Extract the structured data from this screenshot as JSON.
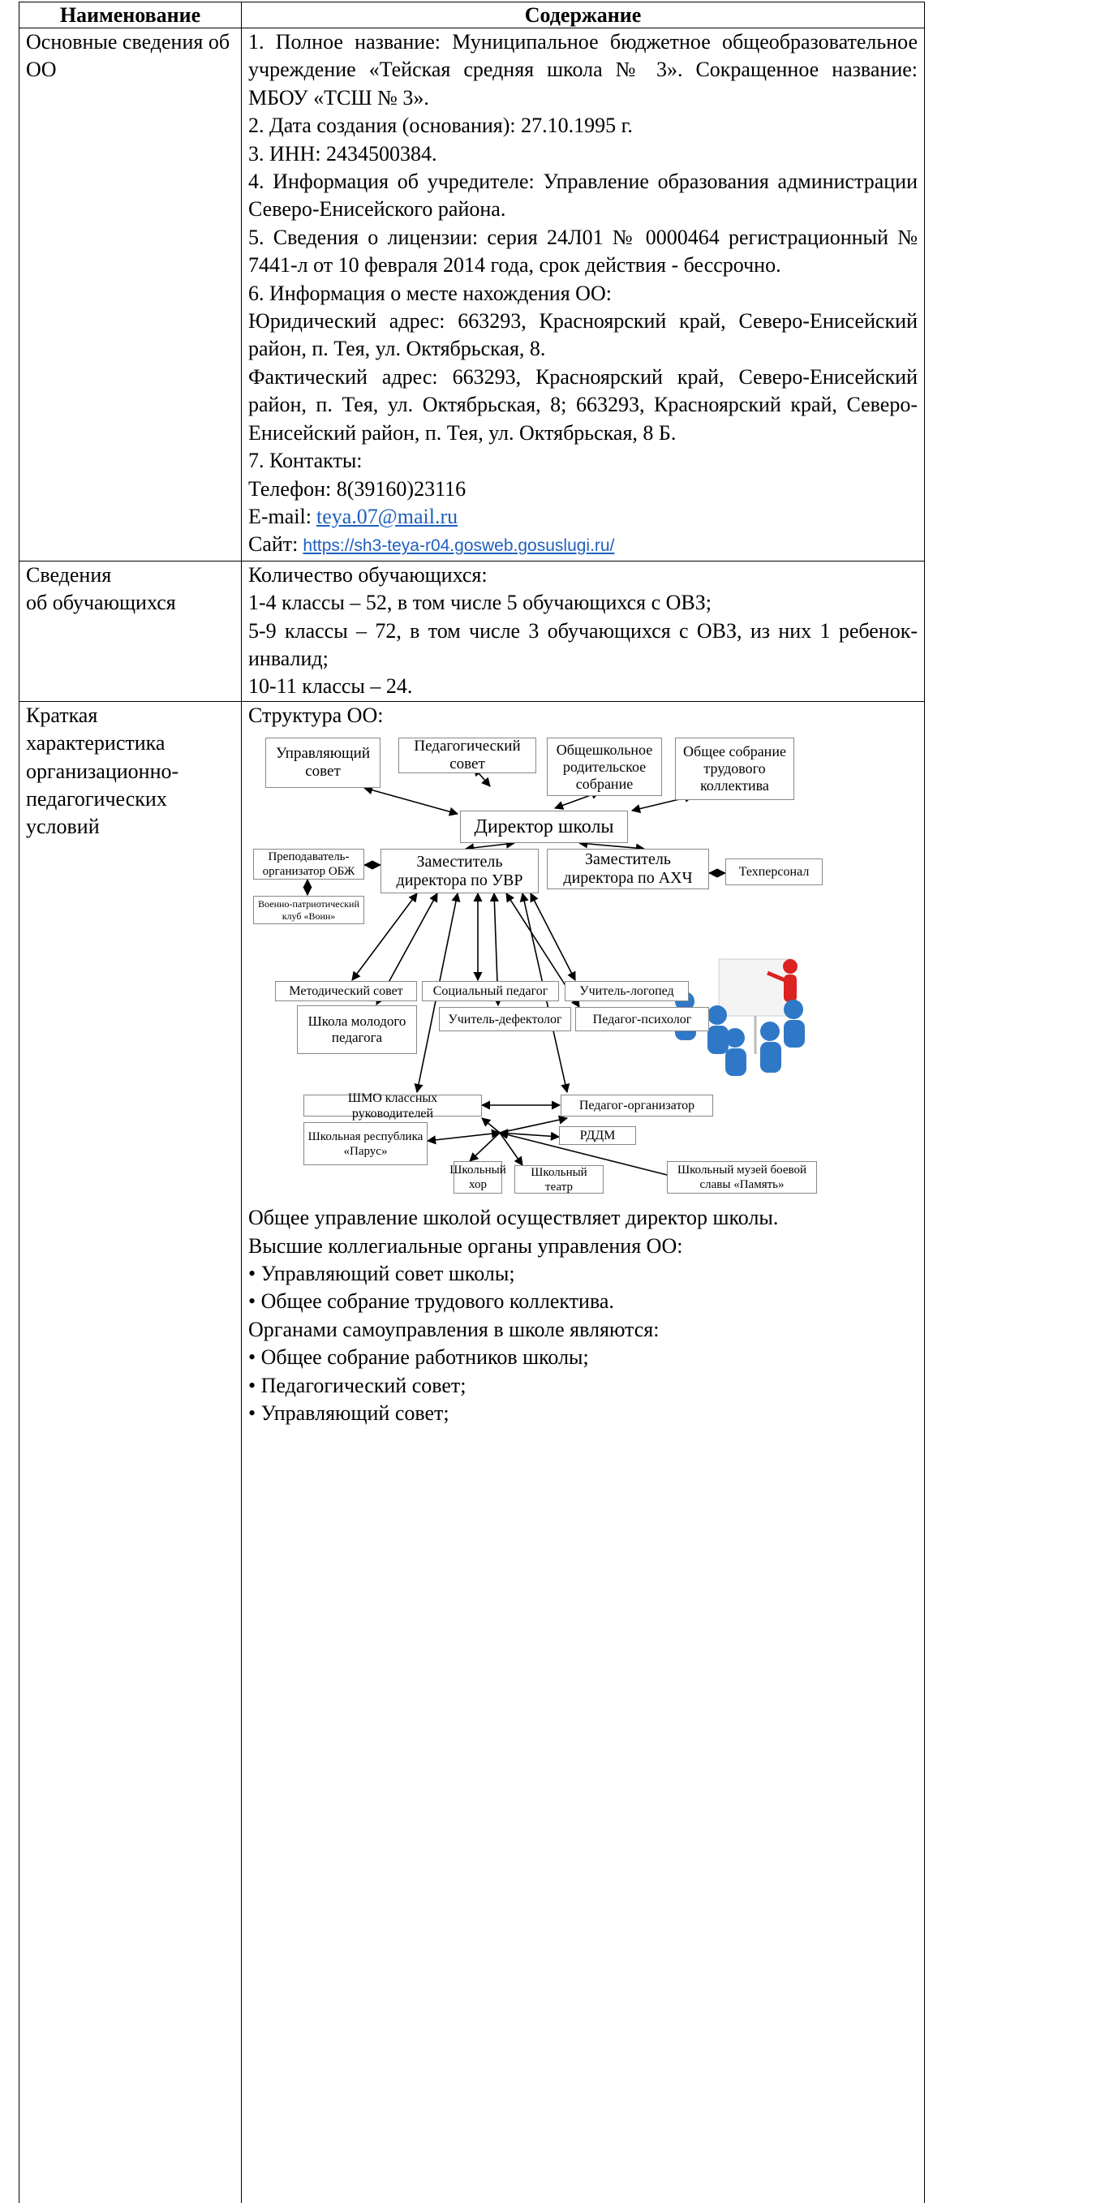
{
  "table": {
    "header": [
      "Наименование",
      "Содержание"
    ],
    "rows": [
      {
        "label": [
          "Основные сведения об",
          "ОО"
        ],
        "content": [
          "1. Полное название: Муниципальное бюджетное общеобразовательное учреждение «Тейская средняя школа № 3». Сокращенное название: МБОУ «ТСШ № 3».",
          "2. Дата создания (основания): 27.10.1995 г.",
          "3. ИНН: 2434500384.",
          "4. Информация об учредителе: Управление образования администрации Северо-Енисейского района.",
          "5. Сведения о лицензии: серия 24Л01 № 0000464 регистрационный № 7441-л от 10 февраля 2014 года, срок действия - бессрочно.",
          "6. Информация о месте нахождения ОО:",
          "Юридический адрес: 663293, Красноярский край, Северо-Енисейский район, п. Тея, ул. Октябрьская, 8.",
          "Фактический адрес: 663293, Красноярский край, Северо-Енисейский район, п. Тея, ул. Октябрьская, 8; 663293, Красноярский край, Северо-Енисейский район, п. Тея, ул. Октябрьская, 8 Б.",
          "7. Контакты:",
          "Телефон: 8(39160)23116"
        ],
        "email": {
          "label": "E-mail:",
          "link": "teya.07@mail.ru"
        },
        "site": {
          "label": "Сайт:",
          "link": "https://sh3-teya-r04.gosweb.gosuslugi.ru/"
        }
      },
      {
        "label": [
          "Сведения",
          "об обучающихся"
        ],
        "content": [
          "Количество обучающихся:",
          "1-4 классы – 52, в том числе 5 обучающихся с ОВЗ;",
          "5-9 классы – 72, в том числе 3 обучающихся с ОВЗ, из них 1 ребенок-инвалид;",
          "10-11 классы – 24."
        ]
      },
      {
        "label": [
          "Краткая",
          "характеристика",
          "организационно-",
          "педагогических",
          "условий"
        ],
        "content": [
          "Структура ОО:"
        ],
        "diagram": {
          "nodes": [
            "Управляющий совет",
            "Педагогический совет",
            "Общешкольное родительское собрание",
            "Общее собрание трудового коллектива",
            "Директор школы",
            "Преподаватель-организатор ОБЖ",
            "Заместитель директора по УВР",
            "Заместитель директора по АХЧ",
            "Техперсонал",
            "Военно-патриотический клуб «Воин»",
            "Методический совет",
            "Социальный педагог",
            "Учитель-логопед",
            "Школа молодого педагога",
            "Учитель-дефектолог",
            "Педагог-психолог",
            "ШМО классных руководителей",
            "Педагог-организатор",
            "Школьная республика «Парус»",
            "РДДМ",
            "Школьный хор",
            "Школьный театр",
            "Школьный музей боевой славы «Память»"
          ]
        },
        "content_after": [
          "Общее управление школой осуществляет директор школы.",
          "Высшие коллегиальные органы управления ОО:",
          "• Управляющий совет школы;",
          "• Общее собрание трудового коллектива.",
          "Органами самоуправления в школе являются:",
          "• Общее собрание работников школы;",
          "• Педагогический совет;",
          "• Управляющий совет;"
        ]
      }
    ]
  }
}
